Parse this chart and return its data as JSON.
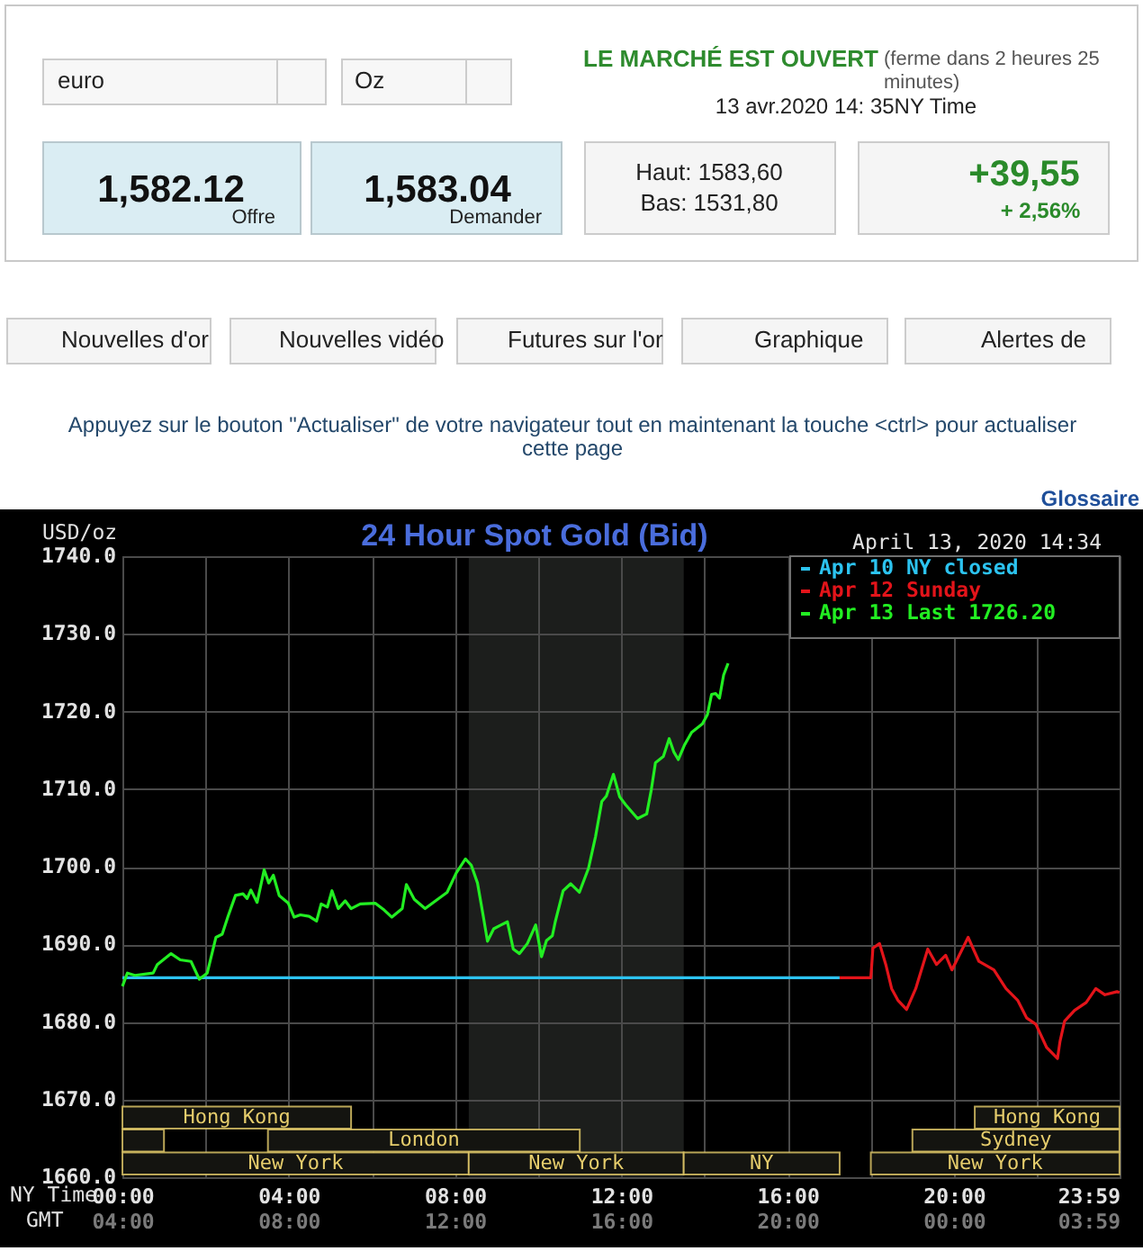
{
  "chart_data": [
    {
      "type": "other",
      "annotations": [
        "euro",
        "Oz",
        "LE MARCHÉ EST OUVERT",
        "(ferme dans 2 heures 25 minutes)",
        "13 avr.2020 14: 35NY Time",
        "1,582.12",
        "Offre",
        "1,583.04",
        "Demander",
        "Haut: 1583,60",
        "Bas: 1531,80",
        "+39,55",
        "+ 2,56%",
        "Nouvelles d'or",
        "Nouvelles vidéo",
        "Futures sur l'or",
        "Graphique",
        "Alertes de",
        "Appuyez sur le bouton \"Actualiser\" de votre navigateur tout en maintenant la touche <ctrl> pour actualiser cette page",
        "Glossaire"
      ]
    },
    {
      "type": "line",
      "title": "24 Hour Spot Gold (Bid)",
      "xlabel": "NY Time",
      "x2label": "GMT",
      "ylabel": "USD/oz",
      "annotations": [
        "April 13, 2020 14:34"
      ],
      "series": [
        {
          "name": "Apr 10 NY closed",
          "color": "#2cc3f0",
          "x": [
            0,
            17.25
          ],
          "values": [
            1685.7,
            1685.7
          ]
        },
        {
          "name": "Apr 12 Sunday",
          "color": "#e3141a",
          "x": [
            17.25,
            18.0,
            18.05,
            18.21,
            18.36,
            18.5,
            18.65,
            18.86,
            19.08,
            19.37,
            19.58,
            19.8,
            19.95,
            20.34,
            20.6,
            20.96,
            21.25,
            21.53,
            21.75,
            21.97,
            22.23,
            22.49,
            22.55,
            22.66,
            22.9,
            23.18,
            23.41,
            23.63,
            23.92,
            23.98
          ],
          "values": [
            1685.7,
            1685.7,
            1689.5,
            1690.1,
            1687.4,
            1684.3,
            1682.8,
            1681.6,
            1684.3,
            1689.4,
            1687.4,
            1688.6,
            1686.7,
            1690.9,
            1687.8,
            1686.7,
            1684.3,
            1682.8,
            1680.5,
            1679.7,
            1676.7,
            1675.3,
            1677.5,
            1680.1,
            1681.5,
            1682.5,
            1684.3,
            1683.5,
            1683.9,
            1683.8
          ]
        },
        {
          "name": "Apr 13 Last 1726.20",
          "color": "#22ee22",
          "x": [
            0,
            0.12,
            0.3,
            0.74,
            0.84,
            1.17,
            1.39,
            1.65,
            1.85,
            2.04,
            2.25,
            2.4,
            2.54,
            2.72,
            2.9,
            3.0,
            3.09,
            3.24,
            3.41,
            3.52,
            3.63,
            3.77,
            3.99,
            4.13,
            4.28,
            4.49,
            4.67,
            4.78,
            4.93,
            5.04,
            5.19,
            5.36,
            5.5,
            5.72,
            6.08,
            6.3,
            6.48,
            6.73,
            6.83,
            7.02,
            7.28,
            7.53,
            7.81,
            8.03,
            8.25,
            8.39,
            8.54,
            8.68,
            8.78,
            8.93,
            9.11,
            9.26,
            9.4,
            9.55,
            9.74,
            9.94,
            10.08,
            10.2,
            10.34,
            10.41,
            10.6,
            10.78,
            10.99,
            11.21,
            11.38,
            11.53,
            11.64,
            11.81,
            11.96,
            12.1,
            12.39,
            12.61,
            12.72,
            12.82,
            13.01,
            13.15,
            13.26,
            13.37,
            13.52,
            13.69,
            13.95,
            14.07,
            14.17,
            14.27,
            14.36,
            14.46,
            14.567
          ],
          "values": [
            1684.6,
            1686.3,
            1686.0,
            1686.3,
            1687.4,
            1688.8,
            1688.0,
            1687.8,
            1685.5,
            1686.3,
            1690.9,
            1691.3,
            1693.6,
            1696.3,
            1696.5,
            1695.9,
            1697.0,
            1695.4,
            1699.6,
            1697.9,
            1698.9,
            1696.3,
            1695.3,
            1693.5,
            1693.8,
            1693.6,
            1693.0,
            1695.2,
            1694.8,
            1696.9,
            1694.6,
            1695.6,
            1694.6,
            1695.2,
            1695.3,
            1694.4,
            1693.5,
            1694.6,
            1697.7,
            1695.8,
            1694.6,
            1695.6,
            1696.7,
            1699.2,
            1701.0,
            1700.2,
            1697.9,
            1693.6,
            1690.4,
            1692.0,
            1692.5,
            1692.9,
            1689.4,
            1688.8,
            1690.1,
            1692.5,
            1688.4,
            1690.5,
            1691.1,
            1692.9,
            1696.9,
            1697.8,
            1696.7,
            1699.8,
            1703.9,
            1708.4,
            1709.1,
            1711.9,
            1709.0,
            1708.0,
            1706.2,
            1706.8,
            1709.9,
            1713.4,
            1714.2,
            1716.5,
            1714.8,
            1713.8,
            1715.7,
            1717.3,
            1718.4,
            1719.6,
            1722.2,
            1722.3,
            1721.7,
            1724.7,
            1726.2
          ]
        }
      ],
      "xlim": [
        0,
        23.983
      ],
      "xticks": [
        {
          "value": 0,
          "label": "00:00"
        },
        {
          "value": 2,
          "label": null
        },
        {
          "value": 4,
          "label": "04:00"
        },
        {
          "value": 6,
          "label": null
        },
        {
          "value": 8,
          "label": "08:00"
        },
        {
          "value": 10,
          "label": null
        },
        {
          "value": 12,
          "label": "12:00"
        },
        {
          "value": 14,
          "label": null
        },
        {
          "value": 16,
          "label": "16:00"
        },
        {
          "value": 18,
          "label": null
        },
        {
          "value": 20,
          "label": "20:00"
        },
        {
          "value": 22,
          "label": null
        },
        {
          "value": 23.983,
          "label": "23:59"
        }
      ],
      "x2lim": [
        "2020-04-13T04:00",
        "2020-04-14T03:59"
      ],
      "x2ticks": [
        {
          "value": "2020-04-13T04:00",
          "label": "04:00"
        },
        {
          "value": "2020-04-13T08:00",
          "label": "08:00"
        },
        {
          "value": "2020-04-13T12:00",
          "label": "12:00"
        },
        {
          "value": "2020-04-13T16:00",
          "label": "16:00"
        },
        {
          "value": "2020-04-13T20:00",
          "label": "20:00"
        },
        {
          "value": "2020-04-14T00:00",
          "label": "00:00"
        },
        {
          "value": "2020-04-14T03:59",
          "label": "03:59"
        }
      ],
      "ylim": [
        1660,
        1740
      ],
      "yticks": [
        {
          "value": 1660,
          "label": "1660.0"
        },
        {
          "value": 1670,
          "label": "1670.0"
        },
        {
          "value": 1680,
          "label": "1680.0"
        },
        {
          "value": 1690,
          "label": "1690.0"
        },
        {
          "value": 1700,
          "label": "1700.0"
        },
        {
          "value": 1710,
          "label": "1710.0"
        },
        {
          "value": 1720,
          "label": "1720.0"
        },
        {
          "value": 1730,
          "label": "1730.0"
        },
        {
          "value": 1740,
          "label": "1740.0"
        }
      ],
      "grid": true,
      "legend": "top right",
      "bands": [
        {
          "axis": "x",
          "from": 8.33,
          "to": 13.5,
          "color": "#1c1e1c"
        }
      ]
    },
    {
      "type": "bar",
      "orientation": "horizontal",
      "xlim": [
        0,
        23.983
      ],
      "tick_labels": false,
      "categories": [
        null,
        null,
        null,
        null,
        null,
        null,
        null,
        null,
        null,
        null,
        null,
        null,
        null,
        null,
        null,
        null,
        null,
        null,
        null,
        null,
        null,
        null,
        null,
        null,
        null,
        null,
        null
      ],
      "series": [
        {
          "color": "#141410",
          "values": [
            null,
            null,
            null,
            null,
            null,
            null,
            null,
            null,
            null,
            null,
            null,
            null,
            null,
            null,
            null,
            null,
            null,
            null,
            null,
            null,
            null,
            null,
            null,
            null,
            5.5,
            1,
            8.33
          ],
          "base": [
            null,
            null,
            null,
            null,
            null,
            null,
            null,
            null,
            null,
            null,
            null,
            null,
            null,
            null,
            null,
            null,
            null,
            null,
            null,
            null,
            null,
            null,
            null,
            null,
            0,
            0,
            0
          ],
          "value_labels": [
            null,
            null,
            null,
            null,
            null,
            null,
            null,
            null,
            null,
            null,
            null,
            null,
            null,
            null,
            null,
            null,
            null,
            null,
            null,
            null,
            null,
            null,
            null,
            null,
            "Hong Kong",
            null,
            "New York"
          ]
        },
        {
          "color": "#141410",
          "values": [
            null,
            null,
            null,
            null,
            null,
            null,
            null,
            null,
            null,
            null,
            null,
            null,
            null,
            null,
            null,
            null,
            null,
            null,
            null,
            null,
            null,
            null,
            null,
            null,
            3.48,
            7.5,
            5.17
          ],
          "base": [
            null,
            null,
            null,
            null,
            null,
            null,
            null,
            null,
            null,
            null,
            null,
            null,
            null,
            null,
            null,
            null,
            null,
            null,
            null,
            null,
            null,
            null,
            null,
            null,
            20.5,
            3.5,
            8.33
          ],
          "value_labels": [
            null,
            null,
            null,
            null,
            null,
            null,
            null,
            null,
            null,
            null,
            null,
            null,
            null,
            null,
            null,
            null,
            null,
            null,
            null,
            null,
            null,
            null,
            null,
            null,
            "Hong Kong",
            "London",
            "New York"
          ]
        },
        {
          "color": "#141410",
          "values": [
            null,
            null,
            null,
            null,
            null,
            null,
            null,
            null,
            null,
            null,
            null,
            null,
            null,
            null,
            null,
            null,
            null,
            null,
            null,
            null,
            null,
            null,
            null,
            null,
            null,
            4.98,
            3.75
          ],
          "base": [
            null,
            null,
            null,
            null,
            null,
            null,
            null,
            null,
            null,
            null,
            null,
            null,
            null,
            null,
            null,
            null,
            null,
            null,
            null,
            null,
            null,
            null,
            null,
            null,
            null,
            19,
            13.5
          ],
          "value_labels": [
            null,
            null,
            null,
            null,
            null,
            null,
            null,
            null,
            null,
            null,
            null,
            null,
            null,
            null,
            null,
            null,
            null,
            null,
            null,
            null,
            null,
            null,
            null,
            null,
            null,
            "Sydney",
            "NY"
          ]
        },
        {
          "color": "#141410",
          "values": [
            null,
            null,
            null,
            null,
            null,
            null,
            null,
            null,
            null,
            null,
            null,
            null,
            null,
            null,
            null,
            null,
            null,
            null,
            null,
            null,
            null,
            null,
            null,
            null,
            null,
            null,
            5.98
          ],
          "base": [
            null,
            null,
            null,
            null,
            null,
            null,
            null,
            null,
            null,
            null,
            null,
            null,
            null,
            null,
            null,
            null,
            null,
            null,
            null,
            null,
            null,
            null,
            null,
            null,
            null,
            null,
            18
          ],
          "value_labels": [
            null,
            null,
            null,
            null,
            null,
            null,
            null,
            null,
            null,
            null,
            null,
            null,
            null,
            null,
            null,
            null,
            null,
            null,
            null,
            null,
            null,
            null,
            null,
            null,
            null,
            null,
            "New York"
          ]
        }
      ]
    }
  ]
}
